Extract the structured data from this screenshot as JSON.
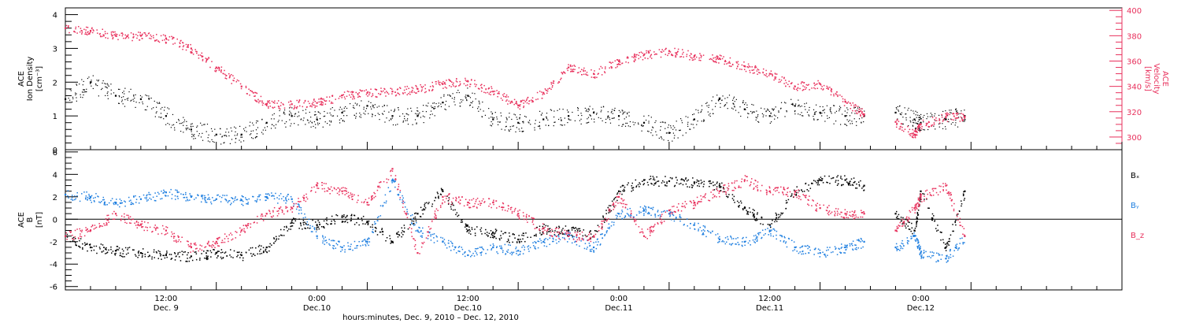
{
  "figure": {
    "xlabel": "hours:minutes, Dec. 9, 2010 – Dec. 12, 2010",
    "x_ticks": [
      {
        "t": 12,
        "time": "12:00",
        "date": "Dec. 9"
      },
      {
        "t": 24,
        "time": "0:00",
        "date": "Dec.10"
      },
      {
        "t": 36,
        "time": "12:00",
        "date": "Dec.10"
      },
      {
        "t": 48,
        "time": "0:00",
        "date": "Dec.11"
      },
      {
        "t": 60,
        "time": "12:00",
        "date": "Dec.11"
      },
      {
        "t": 72,
        "time": "0:00",
        "date": "Dec.12"
      }
    ],
    "colors": {
      "black": "#000000",
      "blue": "#1f7fe0",
      "pink": "#e8305c"
    }
  },
  "chart_data": [
    {
      "type": "scatter",
      "x_axis": {
        "label": "hours:minutes, Dec. 9, 2010 – Dec. 12, 2010",
        "start": "Dec. 9, 2010 04:00",
        "end": "Dec. 12, 2010 16:00"
      },
      "ylabel_left": [
        "ACE",
        "Ion Density",
        "[cm⁻³]"
      ],
      "ylim_left": [
        0,
        4.2
      ],
      "left_ticks": [
        0,
        1,
        2,
        3,
        4
      ],
      "ylabel_right": [
        "ACE",
        "Velocity",
        "[km/s]"
      ],
      "ylim_right": [
        290,
        402
      ],
      "right_ticks": [
        300,
        320,
        340,
        360,
        380,
        400
      ],
      "series": [
        {
          "axis": "left",
          "color": "#000000",
          "points": [
            [
              "Dec. 9 04:00",
              1.5
            ],
            [
              "Dec. 9 06:00",
              2.0
            ],
            [
              "Dec. 9 08:00",
              1.6
            ],
            [
              "Dec. 9 10:00",
              1.5
            ],
            [
              "Dec. 9 12:00",
              1.0
            ],
            [
              "Dec. 9 14:00",
              0.6
            ],
            [
              "Dec. 9 16:00",
              0.45
            ],
            [
              "Dec. 9 18:00",
              0.45
            ],
            [
              "Dec. 9 20:00",
              0.8
            ],
            [
              "Dec. 9 22:00",
              1.0
            ],
            [
              "Dec. 10 00:00",
              0.9
            ],
            [
              "Dec. 10 02:00",
              1.1
            ],
            [
              "Dec. 10 04:00",
              1.3
            ],
            [
              "Dec. 10 06:00",
              1.0
            ],
            [
              "Dec. 10 08:00",
              1.0
            ],
            [
              "Dec. 10 10:00",
              1.4
            ],
            [
              "Dec. 10 12:00",
              1.6
            ],
            [
              "Dec. 10 14:00",
              0.9
            ],
            [
              "Dec. 10 16:00",
              0.8
            ],
            [
              "Dec. 10 18:00",
              0.9
            ],
            [
              "Dec. 10 20:00",
              1.0
            ],
            [
              "Dec. 10 22:00",
              1.1
            ],
            [
              "Dec. 11 00:00",
              1.0
            ],
            [
              "Dec. 11 02:00",
              0.8
            ],
            [
              "Dec. 11 04:00",
              0.5
            ],
            [
              "Dec. 11 06:00",
              0.9
            ],
            [
              "Dec. 11 08:00",
              1.5
            ],
            [
              "Dec. 11 10:00",
              1.2
            ],
            [
              "Dec. 11 12:00",
              1.0
            ],
            [
              "Dec. 11 14:00",
              1.3
            ],
            [
              "Dec. 11 16:00",
              1.1
            ],
            [
              "Dec. 11 18:00",
              1.0
            ],
            [
              "Dec. 11 19:30",
              1.0
            ],
            [
              "Dec. 11 22:00",
              1.1
            ],
            [
              "Dec. 11 23:30",
              0.9
            ],
            [
              "Dec. 12 00:00",
              0.8
            ],
            [
              "Dec. 12 02:00",
              0.9
            ],
            [
              "Dec. 12 03:30",
              1.0
            ]
          ]
        },
        {
          "axis": "right",
          "color": "#e8305c",
          "points": [
            [
              "Dec. 9 04:00",
              386
            ],
            [
              "Dec. 9 06:00",
              384
            ],
            [
              "Dec. 9 08:00",
              380
            ],
            [
              "Dec. 9 10:00",
              380
            ],
            [
              "Dec. 9 12:00",
              378
            ],
            [
              "Dec. 9 14:00",
              370
            ],
            [
              "Dec. 9 16:00",
              355
            ],
            [
              "Dec. 9 18:00",
              340
            ],
            [
              "Dec. 9 20:00",
              326
            ],
            [
              "Dec. 9 22:00",
              326
            ],
            [
              "Dec. 10 00:00",
              327
            ],
            [
              "Dec. 10 02:00",
              333
            ],
            [
              "Dec. 10 04:00",
              335
            ],
            [
              "Dec. 10 06:00",
              336
            ],
            [
              "Dec. 10 08:00",
              338
            ],
            [
              "Dec. 10 10:00",
              342
            ],
            [
              "Dec. 10 12:00",
              344
            ],
            [
              "Dec. 10 14:00",
              336
            ],
            [
              "Dec. 10 16:00",
              325
            ],
            [
              "Dec. 10 18:00",
              335
            ],
            [
              "Dec. 10 20:00",
              355
            ],
            [
              "Dec. 10 22:00",
              350
            ],
            [
              "Dec. 11 00:00",
              360
            ],
            [
              "Dec. 11 02:00",
              365
            ],
            [
              "Dec. 11 04:00",
              368
            ],
            [
              "Dec. 11 06:00",
              364
            ],
            [
              "Dec. 11 08:00",
              362
            ],
            [
              "Dec. 11 10:00",
              356
            ],
            [
              "Dec. 11 12:00",
              350
            ],
            [
              "Dec. 11 14:00",
              340
            ],
            [
              "Dec. 11 16:00",
              342
            ],
            [
              "Dec. 11 18:00",
              328
            ],
            [
              "Dec. 11 19:30",
              318
            ],
            [
              "Dec. 11 22:00",
              312
            ],
            [
              "Dec. 11 23:30",
              302
            ],
            [
              "Dec. 12 00:00",
              310
            ],
            [
              "Dec. 12 02:00",
              316
            ],
            [
              "Dec. 12 03:30",
              316
            ]
          ]
        }
      ]
    },
    {
      "type": "scatter",
      "x_axis": {
        "label": "hours:minutes, Dec. 9, 2010 – Dec. 12, 2010",
        "start": "Dec. 9, 2010 04:00",
        "end": "Dec. 12, 2010 16:00"
      },
      "ylabel": [
        "ACE",
        "B",
        "[nT]"
      ],
      "ylim": [
        -6.3,
        6.2
      ],
      "ticks": [
        -6,
        -4,
        -2,
        0,
        2,
        4,
        6
      ],
      "zero_line": true,
      "series": [
        {
          "name": "Bₓ",
          "color": "#000000",
          "points": [
            [
              "Dec. 9 04:00",
              -1.5
            ],
            [
              "Dec. 9 06:00",
              -2.5
            ],
            [
              "Dec. 9 08:00",
              -2.8
            ],
            [
              "Dec. 9 10:00",
              -3.0
            ],
            [
              "Dec. 9 12:00",
              -3.2
            ],
            [
              "Dec. 9 14:00",
              -3.3
            ],
            [
              "Dec. 9 16:00",
              -3.0
            ],
            [
              "Dec. 9 18:00",
              -3.2
            ],
            [
              "Dec. 9 20:00",
              -2.5
            ],
            [
              "Dec. 9 22:00",
              -0.3
            ],
            [
              "Dec. 10 00:00",
              -0.5
            ],
            [
              "Dec. 10 02:00",
              0.2
            ],
            [
              "Dec. 10 04:00",
              -0.2
            ],
            [
              "Dec. 10 06:00",
              -2.0
            ],
            [
              "Dec. 10 08:00",
              0.5
            ],
            [
              "Dec. 10 10:00",
              2.5
            ],
            [
              "Dec. 10 12:00",
              -1.0
            ],
            [
              "Dec. 10 14:00",
              -1.2
            ],
            [
              "Dec. 10 16:00",
              -1.8
            ],
            [
              "Dec. 10 18:00",
              -0.8
            ],
            [
              "Dec. 10 20:00",
              -1.0
            ],
            [
              "Dec. 10 22:00",
              -1.5
            ],
            [
              "Dec. 11 00:00",
              2.5
            ],
            [
              "Dec. 11 02:00",
              3.5
            ],
            [
              "Dec. 11 04:00",
              3.4
            ],
            [
              "Dec. 11 06:00",
              3.3
            ],
            [
              "Dec. 11 08:00",
              3.0
            ],
            [
              "Dec. 11 10:00",
              1.0
            ],
            [
              "Dec. 11 12:00",
              -0.5
            ],
            [
              "Dec. 11 14:00",
              2.5
            ],
            [
              "Dec. 11 16:00",
              3.5
            ],
            [
              "Dec. 11 18:00",
              3.5
            ],
            [
              "Dec. 11 19:30",
              3.0
            ],
            [
              "Dec. 11 22:00",
              0.5
            ],
            [
              "Dec. 11 23:30",
              -1.0
            ],
            [
              "Dec. 12 00:00",
              2.5
            ],
            [
              "Dec. 12 02:00",
              -2.5
            ],
            [
              "Dec. 12 03:30",
              2.5
            ]
          ]
        },
        {
          "name": "Bᵧ",
          "color": "#1f7fe0",
          "points": [
            [
              "Dec. 9 04:00",
              2.2
            ],
            [
              "Dec. 9 06:00",
              2.0
            ],
            [
              "Dec. 9 08:00",
              1.5
            ],
            [
              "Dec. 9 10:00",
              1.8
            ],
            [
              "Dec. 9 12:00",
              2.4
            ],
            [
              "Dec. 9 14:00",
              2.0
            ],
            [
              "Dec. 9 16:00",
              1.8
            ],
            [
              "Dec. 9 18:00",
              1.7
            ],
            [
              "Dec. 9 20:00",
              2.0
            ],
            [
              "Dec. 9 22:00",
              1.8
            ],
            [
              "Dec. 10 00:00",
              -1.5
            ],
            [
              "Dec. 10 02:00",
              -2.5
            ],
            [
              "Dec. 10 04:00",
              -2.0
            ],
            [
              "Dec. 10 06:00",
              3.5
            ],
            [
              "Dec. 10 08:00",
              -1.0
            ],
            [
              "Dec. 10 10:00",
              -2.0
            ],
            [
              "Dec. 10 12:00",
              -3.2
            ],
            [
              "Dec. 10 14:00",
              -2.5
            ],
            [
              "Dec. 10 16:00",
              -2.8
            ],
            [
              "Dec. 10 18:00",
              -2.0
            ],
            [
              "Dec. 10 20:00",
              -1.5
            ],
            [
              "Dec. 10 22:00",
              -2.5
            ],
            [
              "Dec. 11 00:00",
              0.5
            ],
            [
              "Dec. 11 02:00",
              0.8
            ],
            [
              "Dec. 11 04:00",
              0.5
            ],
            [
              "Dec. 11 06:00",
              -0.5
            ],
            [
              "Dec. 11 08:00",
              -1.8
            ],
            [
              "Dec. 11 10:00",
              -2.0
            ],
            [
              "Dec. 11 12:00",
              -1.0
            ],
            [
              "Dec. 11 14:00",
              -2.5
            ],
            [
              "Dec. 11 16:00",
              -3.0
            ],
            [
              "Dec. 11 18:00",
              -2.5
            ],
            [
              "Dec. 11 19:30",
              -2.0
            ],
            [
              "Dec. 11 22:00",
              -2.5
            ],
            [
              "Dec. 11 23:30",
              -1.5
            ],
            [
              "Dec. 12 00:00",
              -3.0
            ],
            [
              "Dec. 12 02:00",
              -3.5
            ],
            [
              "Dec. 12 03:30",
              -1.5
            ]
          ]
        },
        {
          "name": "B_z",
          "color": "#e8305c",
          "points": [
            [
              "Dec. 9 04:00",
              -1.5
            ],
            [
              "Dec. 9 06:00",
              -1.0
            ],
            [
              "Dec. 9 08:00",
              0.5
            ],
            [
              "Dec. 9 10:00",
              -0.5
            ],
            [
              "Dec. 9 12:00",
              -1.0
            ],
            [
              "Dec. 9 14:00",
              -2.5
            ],
            [
              "Dec. 9 16:00",
              -2.0
            ],
            [
              "Dec. 9 18:00",
              -1.0
            ],
            [
              "Dec. 9 20:00",
              0.5
            ],
            [
              "Dec. 9 22:00",
              1.0
            ],
            [
              "Dec. 10 00:00",
              3.0
            ],
            [
              "Dec. 10 02:00",
              2.5
            ],
            [
              "Dec. 10 04:00",
              1.5
            ],
            [
              "Dec. 10 06:00",
              4.5
            ],
            [
              "Dec. 10 08:00",
              -3.0
            ],
            [
              "Dec. 10 10:00",
              2.0
            ],
            [
              "Dec. 10 12:00",
              1.5
            ],
            [
              "Dec. 10 14:00",
              1.5
            ],
            [
              "Dec. 10 16:00",
              0.5
            ],
            [
              "Dec. 10 18:00",
              -0.8
            ],
            [
              "Dec. 10 20:00",
              -1.5
            ],
            [
              "Dec. 10 22:00",
              -1.5
            ],
            [
              "Dec. 11 00:00",
              2.0
            ],
            [
              "Dec. 11 02:00",
              -1.5
            ],
            [
              "Dec. 11 04:00",
              0.8
            ],
            [
              "Dec. 11 06:00",
              1.5
            ],
            [
              "Dec. 11 08:00",
              2.5
            ],
            [
              "Dec. 11 10:00",
              3.5
            ],
            [
              "Dec. 11 12:00",
              2.5
            ],
            [
              "Dec. 11 14:00",
              2.5
            ],
            [
              "Dec. 11 16:00",
              1.0
            ],
            [
              "Dec. 11 18:00",
              0.5
            ],
            [
              "Dec. 11 19:30",
              0.5
            ],
            [
              "Dec. 11 22:00",
              -1.0
            ],
            [
              "Dec. 11 23:30",
              1.0
            ],
            [
              "Dec. 12 00:00",
              2.0
            ],
            [
              "Dec. 12 02:00",
              3.0
            ],
            [
              "Dec. 12 03:30",
              -1.5
            ]
          ]
        }
      ]
    }
  ]
}
